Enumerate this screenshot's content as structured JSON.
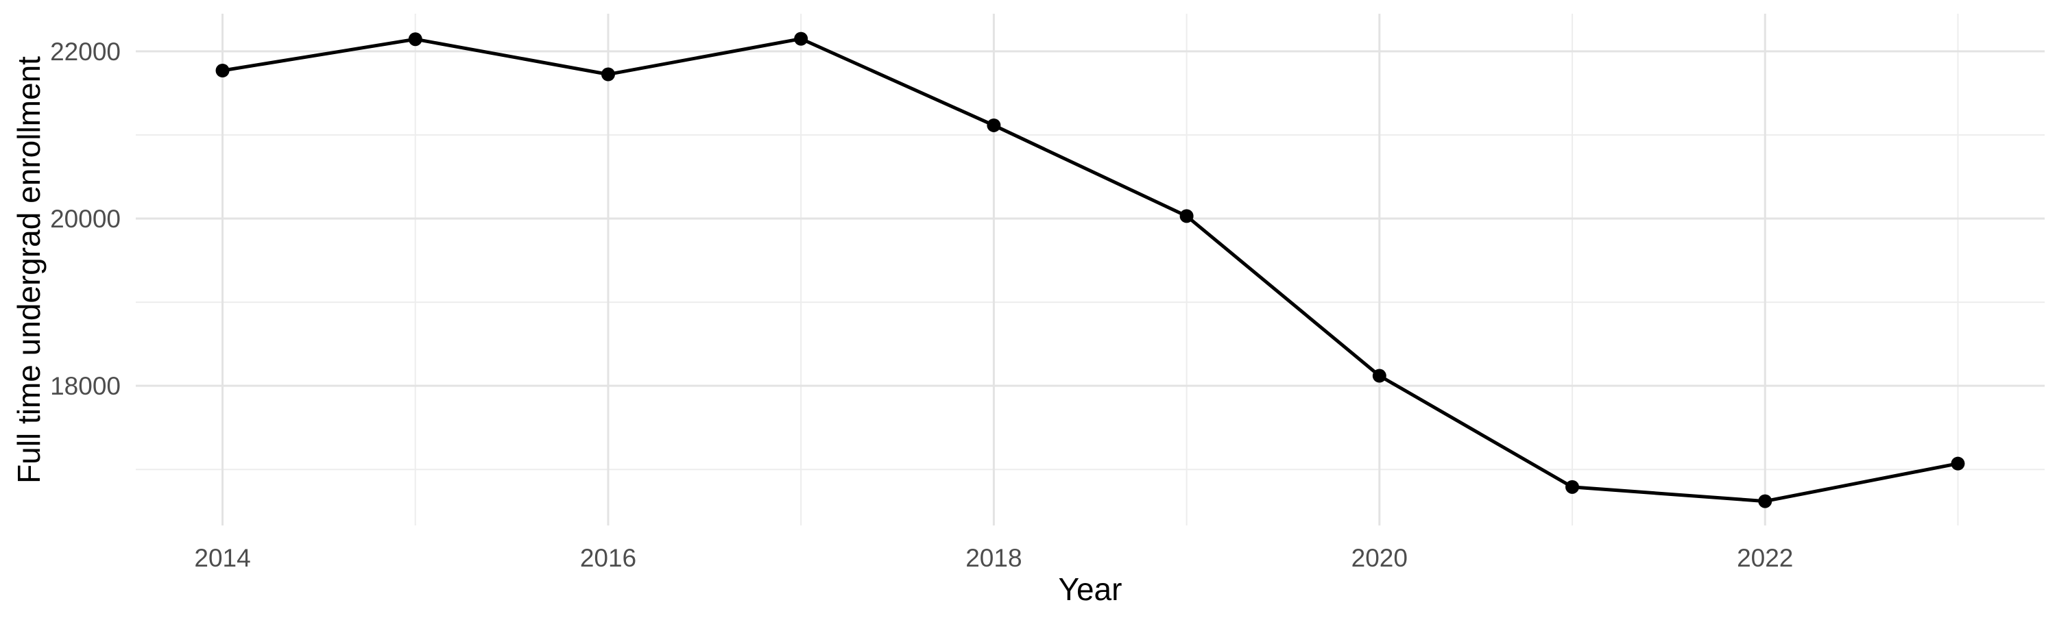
{
  "chart_data": {
    "type": "line",
    "xlabel": "Year",
    "ylabel": "Full time undergrad enrollment",
    "x": [
      2014,
      2015,
      2016,
      2017,
      2018,
      2019,
      2020,
      2021,
      2022,
      2023
    ],
    "series": [
      {
        "name": "Full time undergrad enrollment",
        "values": [
          21770,
          22145,
          21725,
          22150,
          21115,
          20030,
          18120,
          16790,
          16620,
          17070
        ]
      }
    ],
    "xlim": [
      2013.55,
      2023.45
    ],
    "ylim": [
      16330,
      22450
    ],
    "x_major_ticks": [
      2014,
      2016,
      2018,
      2020,
      2022
    ],
    "x_minor_gridlines": [
      2015,
      2017,
      2019,
      2021,
      2023
    ],
    "y_major_ticks": [
      22000,
      20000,
      18000
    ],
    "y_minor_gridlines": [
      21000,
      19000,
      17000
    ],
    "grid": "major+minor, light gray on white, no axis lines, no tick marks",
    "legend_position": "none",
    "style": "ggplot2 theme_minimal, black line with black point markers"
  },
  "colors": {
    "background": "#FFFFFF",
    "line": "#000000",
    "point": "#000000",
    "grid_major": "#E3E3E3",
    "grid_minor": "#EDEDED",
    "tick_label": "#4D4D4D",
    "axis_title": "#000000"
  }
}
